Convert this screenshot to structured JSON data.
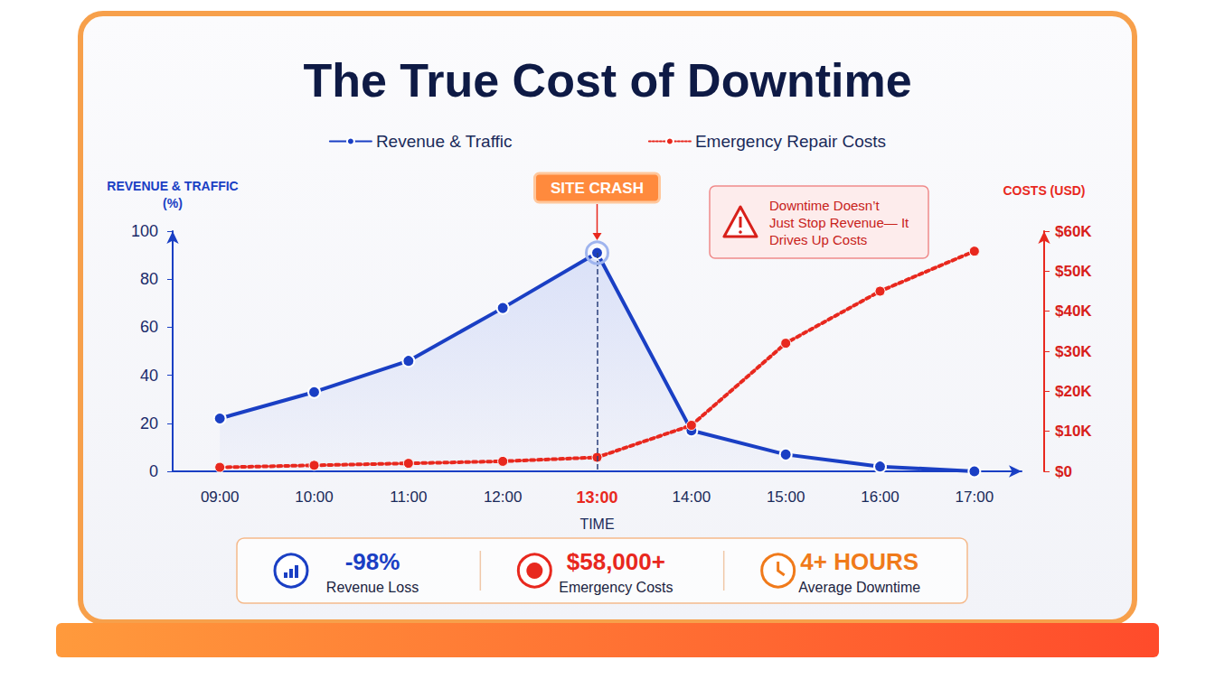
{
  "chart_data": {
    "type": "line",
    "title": "The True Cost of Downtime",
    "x_label": "TIME",
    "y_label": "REVENUE & TRAFFIC (%)",
    "y2_label": "COSTS (USD)",
    "categories": [
      "09:00",
      "10:00",
      "11:00",
      "12:00",
      "13:00",
      "14:00",
      "15:00",
      "16:00",
      "17:00"
    ],
    "series": [
      {
        "name": "Revenue & Traffic",
        "color": "#1a3fc4",
        "line_style": "solid",
        "marker": "circle",
        "values": [
          22,
          33,
          46,
          68,
          91,
          17,
          7,
          2,
          0
        ]
      },
      {
        "name": "Emergency Repair Costs",
        "color": "#e8281e",
        "line_style": "dotted",
        "marker": "circle",
        "axis": "y2",
        "values": [
          1000,
          1500,
          2000,
          2500,
          3500,
          11500,
          32000,
          45000,
          55000
        ]
      }
    ],
    "ylim": [
      0,
      100
    ],
    "yticks": [
      0,
      20,
      40,
      60,
      80,
      100
    ],
    "y2lim": [
      0,
      60000
    ],
    "y2ticks": [
      {
        "value": 0,
        "label": "$0"
      },
      {
        "value": 10000,
        "label": "$10K"
      },
      {
        "value": 20000,
        "label": "$20K"
      },
      {
        "value": 30000,
        "label": "$30K"
      },
      {
        "value": 40000,
        "label": "$40K"
      },
      {
        "value": 50000,
        "label": "$50K"
      },
      {
        "value": 60000,
        "label": "$60K"
      }
    ],
    "grid": false,
    "legend": "top",
    "annotations": [
      {
        "text": "SITE CRASH",
        "x": "13:00"
      },
      {
        "text": "Downtime Doesn’t Just Stop Revenue— It Drives Up Costs"
      }
    ],
    "stats": [
      {
        "value": "-98%",
        "label": "Revenue Loss",
        "color": "#1a3fc4"
      },
      {
        "value": "$58,000+",
        "label": "Emergency Costs",
        "color": "#e8281e"
      },
      {
        "value": "4+ HOURS",
        "label": "Average Downtime",
        "color": "#f07a1a"
      }
    ]
  }
}
